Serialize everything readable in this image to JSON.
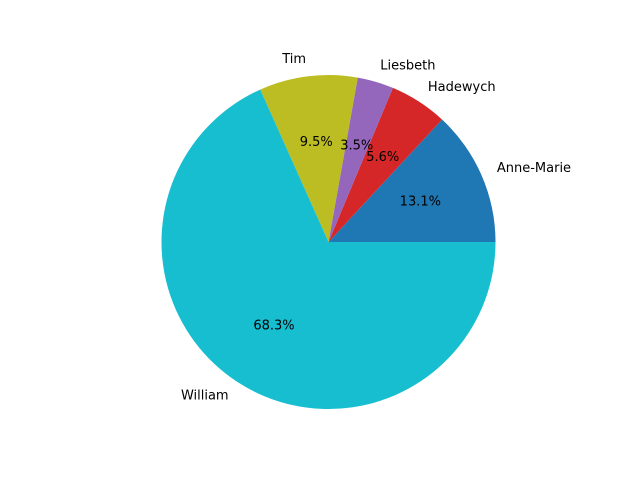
{
  "chart_data": {
    "type": "pie",
    "title": "",
    "categories": [
      "Anne-Marie",
      "Hadewych",
      "Liesbeth",
      "Tim",
      "William"
    ],
    "values": [
      13.1,
      5.6,
      3.5,
      9.5,
      68.3
    ],
    "percent_labels": [
      "13.1%",
      "5.6%",
      "3.5%",
      "9.5%",
      "68.3%"
    ],
    "colors": [
      "#1f77b4",
      "#d62728",
      "#9467bd",
      "#bcbd22",
      "#17becf"
    ],
    "start_angle_deg": 0,
    "direction": "counterclockwise",
    "legend": "none"
  }
}
